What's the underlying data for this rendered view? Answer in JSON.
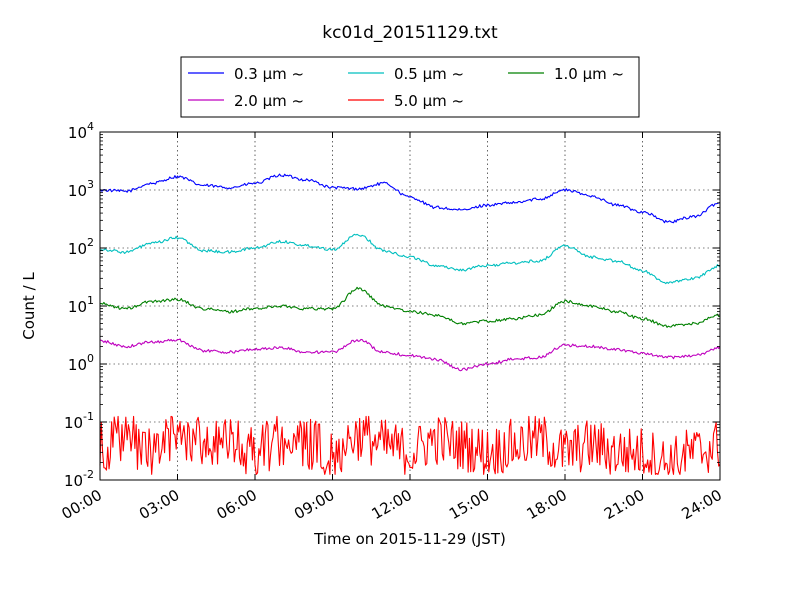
{
  "chart_data": {
    "type": "line",
    "title": "kc01d_20151129.txt",
    "xlabel": "Time on 2015-11-29 (JST)",
    "ylabel": "Count / L",
    "yscale": "log",
    "ylim": [
      0.01,
      10000
    ],
    "xlim": [
      "2015-11-29 00:00",
      "2015-11-30 00:00"
    ],
    "xtick_labels": [
      "00:00",
      "03:00",
      "06:00",
      "09:00",
      "12:00",
      "15:00",
      "18:00",
      "21:00",
      "24:00"
    ],
    "ytick_labels": [
      {
        "base": "10",
        "exp": "-2"
      },
      {
        "base": "10",
        "exp": "-1"
      },
      {
        "base": "10",
        "exp": "0"
      },
      {
        "base": "10",
        "exp": "1"
      },
      {
        "base": "10",
        "exp": "2"
      },
      {
        "base": "10",
        "exp": "3"
      },
      {
        "base": "10",
        "exp": "4"
      }
    ],
    "grid": true,
    "legend_position": "top-center",
    "x": [
      "00:00",
      "01:00",
      "02:00",
      "03:00",
      "04:00",
      "05:00",
      "06:00",
      "07:00",
      "08:00",
      "09:00",
      "10:00",
      "11:00",
      "12:00",
      "13:00",
      "14:00",
      "15:00",
      "16:00",
      "17:00",
      "18:00",
      "19:00",
      "20:00",
      "21:00",
      "22:00",
      "23:00",
      "24:00"
    ],
    "series": [
      {
        "name": "0.3 μm ~",
        "color": "#0000ff",
        "values": [
          1000,
          950,
          1300,
          1700,
          1200,
          1100,
          1300,
          1800,
          1500,
          1100,
          1050,
          1300,
          750,
          500,
          450,
          550,
          600,
          700,
          1000,
          800,
          550,
          420,
          280,
          350,
          600
        ]
      },
      {
        "name": "0.5 μm ~",
        "color": "#00bfbf",
        "values": [
          95,
          85,
          120,
          150,
          90,
          85,
          100,
          130,
          110,
          95,
          170,
          90,
          70,
          50,
          42,
          50,
          55,
          60,
          110,
          70,
          60,
          40,
          25,
          30,
          50
        ]
      },
      {
        "name": "1.0 μm ~",
        "color": "#008000",
        "values": [
          11,
          9,
          12,
          13,
          9,
          8,
          9,
          10,
          9,
          9,
          20,
          10,
          8,
          7,
          5,
          5.5,
          6,
          7,
          12,
          10,
          8,
          6,
          4.5,
          5,
          7
        ]
      },
      {
        "name": "2.0 μm ~",
        "color": "#bf00bf",
        "values": [
          2.5,
          2.0,
          2.4,
          2.6,
          1.7,
          1.6,
          1.8,
          1.9,
          1.6,
          1.6,
          2.6,
          1.6,
          1.4,
          1.2,
          0.8,
          1.0,
          1.2,
          1.3,
          2.1,
          2.0,
          1.8,
          1.5,
          1.3,
          1.4,
          1.9
        ]
      },
      {
        "name": "5.0 μm ~",
        "color": "#ff0000",
        "values": [
          0.04,
          0.05,
          0.03,
          0.06,
          0.05,
          0.04,
          0.03,
          0.05,
          0.04,
          0.03,
          0.06,
          0.04,
          0.03,
          0.05,
          0.04,
          0.03,
          0.04,
          0.05,
          0.03,
          0.04,
          0.03,
          0.03,
          0.02,
          0.03,
          0.04
        ]
      }
    ]
  }
}
